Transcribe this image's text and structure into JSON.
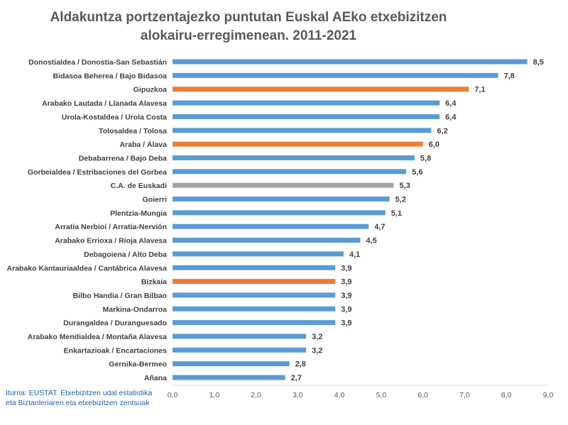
{
  "title": {
    "line1": "Aldakuntza portzentajezko puntutan Euskal AEko etxebizitzen",
    "line2": "alokairu-erregimenean. 2011-2021"
  },
  "source": {
    "line1": "Iturria: EUSTAT. Etxebizitzen udal estatistika",
    "line2": "eta Biztanleriaren eta etxebizitzen zentsuak"
  },
  "colors": {
    "comarca": "#5b9bd5",
    "territorio": "#ed7d31",
    "total": "#a5a5a5"
  },
  "chart_data": {
    "type": "bar",
    "orientation": "horizontal",
    "title": "Aldakuntza portzentajezko puntutan Euskal AEko etxebizitzen alokairu-erregimenean. 2011-2021",
    "xlim": [
      0,
      9
    ],
    "xticks": [
      "0,0",
      "1,0",
      "2,0",
      "3,0",
      "4,0",
      "5,0",
      "6,0",
      "7,0",
      "8,0",
      "9,0"
    ],
    "grid": false,
    "legend": "none",
    "bars": [
      {
        "category": "Donostialdea / Donostia-San Sebastián",
        "value": 8.5,
        "label": "8,5",
        "group": "comarca"
      },
      {
        "category": "Bidasoa Beherea / Bajo Bidasoa",
        "value": 7.8,
        "label": "7,8",
        "group": "comarca"
      },
      {
        "category": "Gipuzkoa",
        "value": 7.1,
        "label": "7,1",
        "group": "territorio"
      },
      {
        "category": "Arabako Lautada / Llanada Alavesa",
        "value": 6.4,
        "label": "6,4",
        "group": "comarca"
      },
      {
        "category": "Urola-Kostaldea / Urola Costa",
        "value": 6.4,
        "label": "6,4",
        "group": "comarca"
      },
      {
        "category": "Tolosaldea / Tolosa",
        "value": 6.2,
        "label": "6,2",
        "group": "comarca"
      },
      {
        "category": "Araba / Álava",
        "value": 6.0,
        "label": "6,0",
        "group": "territorio"
      },
      {
        "category": "Debabarrena / Bajo Deba",
        "value": 5.8,
        "label": "5,8",
        "group": "comarca"
      },
      {
        "category": "Gorbeialdea / Estribaciones del Gorbea",
        "value": 5.6,
        "label": "5,6",
        "group": "comarca"
      },
      {
        "category": "C.A. de Euskadi",
        "value": 5.3,
        "label": "5,3",
        "group": "total"
      },
      {
        "category": "Goierri",
        "value": 5.2,
        "label": "5,2",
        "group": "comarca"
      },
      {
        "category": "Plentzia-Mungia",
        "value": 5.1,
        "label": "5,1",
        "group": "comarca"
      },
      {
        "category": "Arratia Nerbioi / Arratia-Nervión",
        "value": 4.7,
        "label": "4,7",
        "group": "comarca"
      },
      {
        "category": "Arabako Errioxa / Rioja Alavesa",
        "value": 4.5,
        "label": "4,5",
        "group": "comarca"
      },
      {
        "category": "Debagoiena / Alto Deba",
        "value": 4.1,
        "label": "4,1",
        "group": "comarca"
      },
      {
        "category": "Arabako Kantauriaaldea / Cantábrica Alavesa",
        "value": 3.9,
        "label": "3,9",
        "group": "comarca"
      },
      {
        "category": "Bizkaia",
        "value": 3.9,
        "label": "3,9",
        "group": "territorio"
      },
      {
        "category": "Bilbo Handia / Gran Bilbao",
        "value": 3.9,
        "label": "3,9",
        "group": "comarca"
      },
      {
        "category": "Markina-Ondarroa",
        "value": 3.9,
        "label": "3,9",
        "group": "comarca"
      },
      {
        "category": "Durangaldea / Duranguesado",
        "value": 3.9,
        "label": "3,9",
        "group": "comarca"
      },
      {
        "category": "Arabako Mendialdea / Montaña Alavesa",
        "value": 3.2,
        "label": "3,2",
        "group": "comarca"
      },
      {
        "category": "Enkartazioak / Encartaciones",
        "value": 3.2,
        "label": "3,2",
        "group": "comarca"
      },
      {
        "category": "Gernika-Bermeo",
        "value": 2.8,
        "label": "2,8",
        "group": "comarca"
      },
      {
        "category": "Añana",
        "value": 2.7,
        "label": "2,7",
        "group": "comarca"
      }
    ]
  }
}
